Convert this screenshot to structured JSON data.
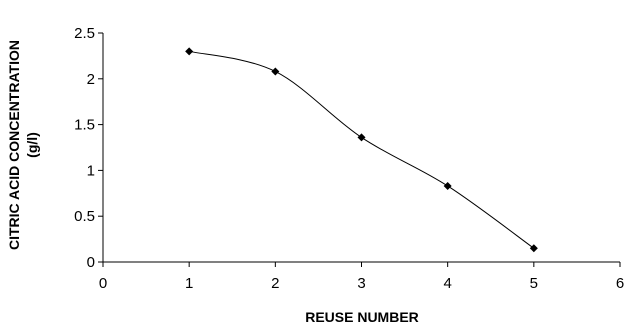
{
  "chart_data": {
    "type": "line",
    "title": "",
    "xlabel": "REUSE NUMBER",
    "ylabel_line1": "CITRIC ACID CONCENTRATION",
    "ylabel_line2": "(g/l)",
    "xlim": [
      0,
      6
    ],
    "ylim": [
      0,
      2.5
    ],
    "x_ticks": [
      "0",
      "1",
      "2",
      "3",
      "4",
      "5",
      "6"
    ],
    "y_ticks": [
      "0",
      "0.5",
      "1",
      "1.5",
      "2",
      "2.5"
    ],
    "grid": false,
    "legend": "none",
    "series": [
      {
        "x": [
          1,
          2,
          3,
          4,
          5
        ],
        "y": [
          2.3,
          2.08,
          1.36,
          0.83,
          0.15
        ],
        "color": "#000000",
        "marker": "diamond",
        "smooth": true
      }
    ]
  }
}
